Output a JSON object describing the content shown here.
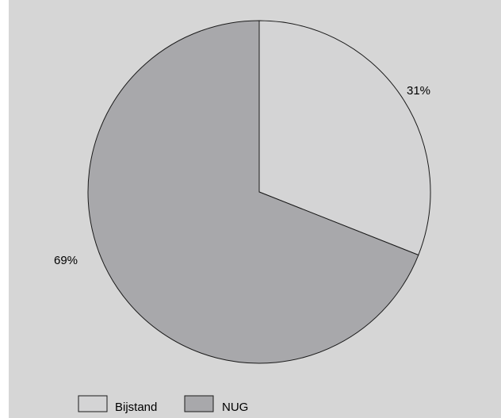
{
  "chart_data": {
    "type": "pie",
    "start_angle_deg": 0,
    "direction": "clockwise",
    "slices": [
      {
        "name": "Bijstand",
        "value": 31,
        "label": "31%",
        "color": "#d4d4d5"
      },
      {
        "name": "NUG",
        "value": 69,
        "label": "69%",
        "color": "#a8a8ab"
      }
    ],
    "legend": {
      "placement": "bottom-left",
      "items": [
        "Bijstand",
        "NUG"
      ]
    },
    "title": "",
    "outline_color": "#1a1a1a"
  }
}
